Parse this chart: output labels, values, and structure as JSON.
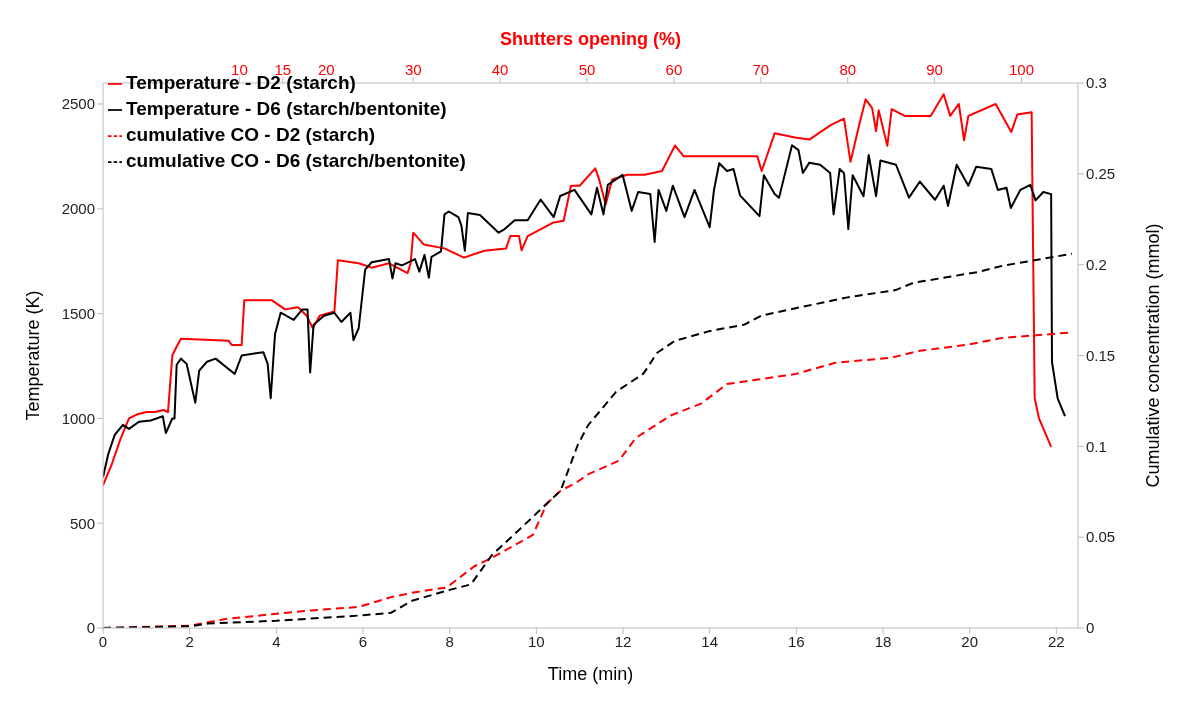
{
  "chart_data": {
    "type": "line",
    "xlabel": "Time (min)",
    "ylabel": "Temperature (K)",
    "y2label": "Cumulative concentration (mmol)",
    "x2label": "Shutters opening (%)",
    "xlim": [
      0,
      22.5
    ],
    "xticks": [
      0,
      2,
      4,
      6,
      8,
      10,
      12,
      14,
      16,
      18,
      20,
      22
    ],
    "x2lim": [
      -5.7,
      106.5
    ],
    "x2ticks": [
      10,
      15,
      20,
      30,
      40,
      50,
      60,
      70,
      80,
      90,
      100
    ],
    "ylim": [
      0,
      2600
    ],
    "yticks": [
      0,
      500,
      1000,
      1500,
      2000,
      2500
    ],
    "y2lim": [
      0,
      0.3
    ],
    "y2ticks": [
      0,
      0.05,
      0.1,
      0.15,
      0.2,
      0.25,
      0.3
    ],
    "grid": false,
    "legend": "top left",
    "marker": "none",
    "series": [
      {
        "name": "Temperature - D2 (starch)",
        "color": "#ff0000",
        "line_style": "solid",
        "x": [
          0,
          0.2,
          0.4,
          0.6,
          0.8,
          1.0,
          1.2,
          1.4,
          1.5,
          1.6,
          1.7,
          1.8,
          2.9,
          2.97,
          3.2,
          3.26,
          3.9,
          4.2,
          4.5,
          4.7,
          4.84,
          5.0,
          5.34,
          5.42,
          5.9,
          6.2,
          6.6,
          7.03,
          7.1,
          7.16,
          7.4,
          7.88,
          8.33,
          8.8,
          9.3,
          9.4,
          9.6,
          9.66,
          9.8,
          10.4,
          10.63,
          10.8,
          11.0,
          11.36,
          11.45,
          11.6,
          11.75,
          12.1,
          12.5,
          12.9,
          13.2,
          13.4,
          15.1,
          15.2,
          15.5,
          15.97,
          16.3,
          16.8,
          17.1,
          17.25,
          17.45,
          17.6,
          17.75,
          17.84,
          17.9,
          18.1,
          18.2,
          18.5,
          19.1,
          19.4,
          19.55,
          19.75,
          19.87,
          19.97,
          20.6,
          20.96,
          21.1,
          21.43,
          21.5,
          21.6,
          21.88
        ],
        "values": [
          680,
          780,
          900,
          1000,
          1020,
          1030,
          1030,
          1040,
          1030,
          1300,
          1343,
          1380,
          1370,
          1350,
          1350,
          1563,
          1563,
          1520,
          1530,
          1490,
          1430,
          1490,
          1510,
          1754,
          1740,
          1719,
          1740,
          1693,
          1740,
          1886,
          1830,
          1811,
          1767,
          1800,
          1810,
          1870,
          1870,
          1802,
          1870,
          1935,
          1943,
          2110,
          2110,
          2193,
          2140,
          2020,
          2140,
          2162,
          2162,
          2180,
          2302,
          2250,
          2250,
          2180,
          2360,
          2340,
          2330,
          2400,
          2430,
          2224,
          2400,
          2522,
          2480,
          2370,
          2470,
          2300,
          2475,
          2443,
          2443,
          2546,
          2443,
          2500,
          2327,
          2443,
          2500,
          2366,
          2450,
          2460,
          1096,
          1000,
          864
        ]
      },
      {
        "name": "Temperature - D6 (starch/bentonite)",
        "color": "#000000",
        "line_style": "solid",
        "x": [
          0,
          0.12,
          0.27,
          0.46,
          0.6,
          0.83,
          1.1,
          1.38,
          1.45,
          1.6,
          1.65,
          1.7,
          1.8,
          1.93,
          2.13,
          2.22,
          2.4,
          2.6,
          3.04,
          3.2,
          3.7,
          3.8,
          3.87,
          3.97,
          4.1,
          4.4,
          4.6,
          4.72,
          4.78,
          4.86,
          5.1,
          5.34,
          5.5,
          5.71,
          5.78,
          5.9,
          6.05,
          6.2,
          6.6,
          6.68,
          6.75,
          6.9,
          7.2,
          7.3,
          7.42,
          7.52,
          7.58,
          7.8,
          7.88,
          7.98,
          8.2,
          8.27,
          8.35,
          8.42,
          8.7,
          9.13,
          9.25,
          9.5,
          9.8,
          10.1,
          10.4,
          10.55,
          10.88,
          11.27,
          11.4,
          11.55,
          11.65,
          11.99,
          12.2,
          12.35,
          12.63,
          12.73,
          12.82,
          13.0,
          13.15,
          13.42,
          13.65,
          14.0,
          14.1,
          14.22,
          14.4,
          14.55,
          14.7,
          15.15,
          15.25,
          15.5,
          15.6,
          15.9,
          16.05,
          16.15,
          16.3,
          16.55,
          16.78,
          16.86,
          17.0,
          17.1,
          17.2,
          17.3,
          17.55,
          17.67,
          17.84,
          17.94,
          18.3,
          18.6,
          18.85,
          19.2,
          19.4,
          19.5,
          19.7,
          19.97,
          20.15,
          20.5,
          20.65,
          20.85,
          20.95,
          21.17,
          21.4,
          21.52,
          21.7,
          21.88,
          21.9,
          22.03,
          22.2
        ],
        "values": [
          719,
          829,
          921,
          969,
          950,
          984,
          990,
          1010,
          930,
          1000,
          1000,
          1256,
          1285,
          1260,
          1075,
          1228,
          1270,
          1285,
          1212,
          1300,
          1316,
          1260,
          1096,
          1403,
          1504,
          1470,
          1520,
          1520,
          1219,
          1447,
          1490,
          1504,
          1460,
          1504,
          1373,
          1430,
          1710,
          1745,
          1760,
          1667,
          1740,
          1730,
          1760,
          1700,
          1780,
          1671,
          1770,
          1797,
          1973,
          1987,
          1960,
          1921,
          1800,
          1980,
          1970,
          1886,
          1900,
          1945,
          1945,
          2044,
          1960,
          2061,
          2090,
          1973,
          2100,
          1973,
          2114,
          2162,
          1990,
          2080,
          2070,
          1842,
          2090,
          1990,
          2110,
          1960,
          2090,
          1912,
          2090,
          2217,
          2180,
          2190,
          2064,
          1965,
          2160,
          2070,
          2052,
          2303,
          2280,
          2171,
          2220,
          2210,
          2171,
          1973,
          2190,
          2170,
          1903,
          2160,
          2060,
          2256,
          2060,
          2230,
          2210,
          2053,
          2130,
          2043,
          2110,
          2013,
          2210,
          2110,
          2200,
          2190,
          2090,
          2100,
          2004,
          2090,
          2114,
          2040,
          2080,
          2070,
          1269,
          1096,
          1011
        ]
      },
      {
        "name": "cumulative CO - D2 (starch)",
        "color": "#ff0000",
        "line_style": "dashed",
        "axis": "y2",
        "x": [
          0,
          2.03,
          2.83,
          4.0,
          4.8,
          5.9,
          6.65,
          7.2,
          7.93,
          8.57,
          8.97,
          9.92,
          10.24,
          10.56,
          10.92,
          11.2,
          11.9,
          12.3,
          13.1,
          13.8,
          14.4,
          15.98,
          16.9,
          18.2,
          18.8,
          19.96,
          20.76,
          22.36
        ],
        "values": [
          0,
          0.0013,
          0.005,
          0.0078,
          0.0097,
          0.0116,
          0.017,
          0.0197,
          0.0223,
          0.034,
          0.0386,
          0.0512,
          0.0684,
          0.0756,
          0.08,
          0.0847,
          0.092,
          0.1047,
          0.117,
          0.1235,
          0.1343,
          0.1398,
          0.146,
          0.1488,
          0.1524,
          0.156,
          0.1597,
          0.1627
        ]
      },
      {
        "name": "cumulative CO - D6 (starch/bentonite)",
        "color": "#000000",
        "line_style": "dashed",
        "axis": "y2",
        "x": [
          0,
          2.03,
          2.43,
          4.0,
          6.0,
          6.65,
          7.13,
          8.0,
          8.49,
          8.97,
          9.6,
          10.0,
          10.56,
          10.96,
          11.2,
          11.84,
          12.47,
          12.79,
          13.19,
          13.99,
          14.8,
          15.2,
          16.38,
          17.18,
          18.29,
          18.7,
          20.2,
          20.76,
          22.36
        ],
        "values": [
          0,
          0.001,
          0.0025,
          0.004,
          0.007,
          0.0084,
          0.015,
          0.021,
          0.024,
          0.04,
          0.054,
          0.063,
          0.0756,
          0.101,
          0.1118,
          0.13,
          0.14,
          0.1515,
          0.158,
          0.1634,
          0.167,
          0.172,
          0.178,
          0.182,
          0.186,
          0.19,
          0.196,
          0.1994,
          0.206
        ]
      }
    ]
  }
}
